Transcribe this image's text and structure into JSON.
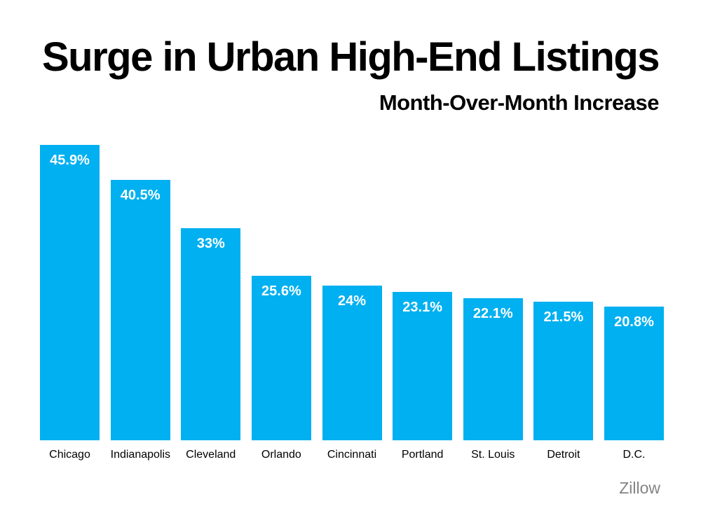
{
  "slide": {
    "title": "Surge in Urban High-End Listings",
    "subtitle": "Month-Over-Month Increase",
    "source": "Zillow"
  },
  "chart_data": {
    "type": "bar",
    "title": "Surge in Urban High-End Listings",
    "subtitle": "Month-Over-Month Increase",
    "source": "Zillow",
    "orientation": "vertical",
    "categories": [
      "Chicago",
      "Indianapolis",
      "Cleveland",
      "Orlando",
      "Cincinnati",
      "Portland",
      "St. Louis",
      "Detroit",
      "D.C."
    ],
    "values": [
      45.9,
      40.5,
      33,
      25.6,
      24,
      23.1,
      22.1,
      21.5,
      20.8
    ],
    "value_labels": [
      "45.9%",
      "40.5%",
      "33%",
      "25.6%",
      "24%",
      "23.1%",
      "22.1%",
      "21.5%",
      "20.8%"
    ],
    "unit": "%",
    "ylim": [
      0,
      46
    ],
    "grid": false,
    "legend": false,
    "bar_color": "#00B0F0",
    "value_label_color": "#FFFFFF",
    "text_color": "#000000",
    "source_color": "#848484",
    "background_color": "#FFFFFF"
  }
}
